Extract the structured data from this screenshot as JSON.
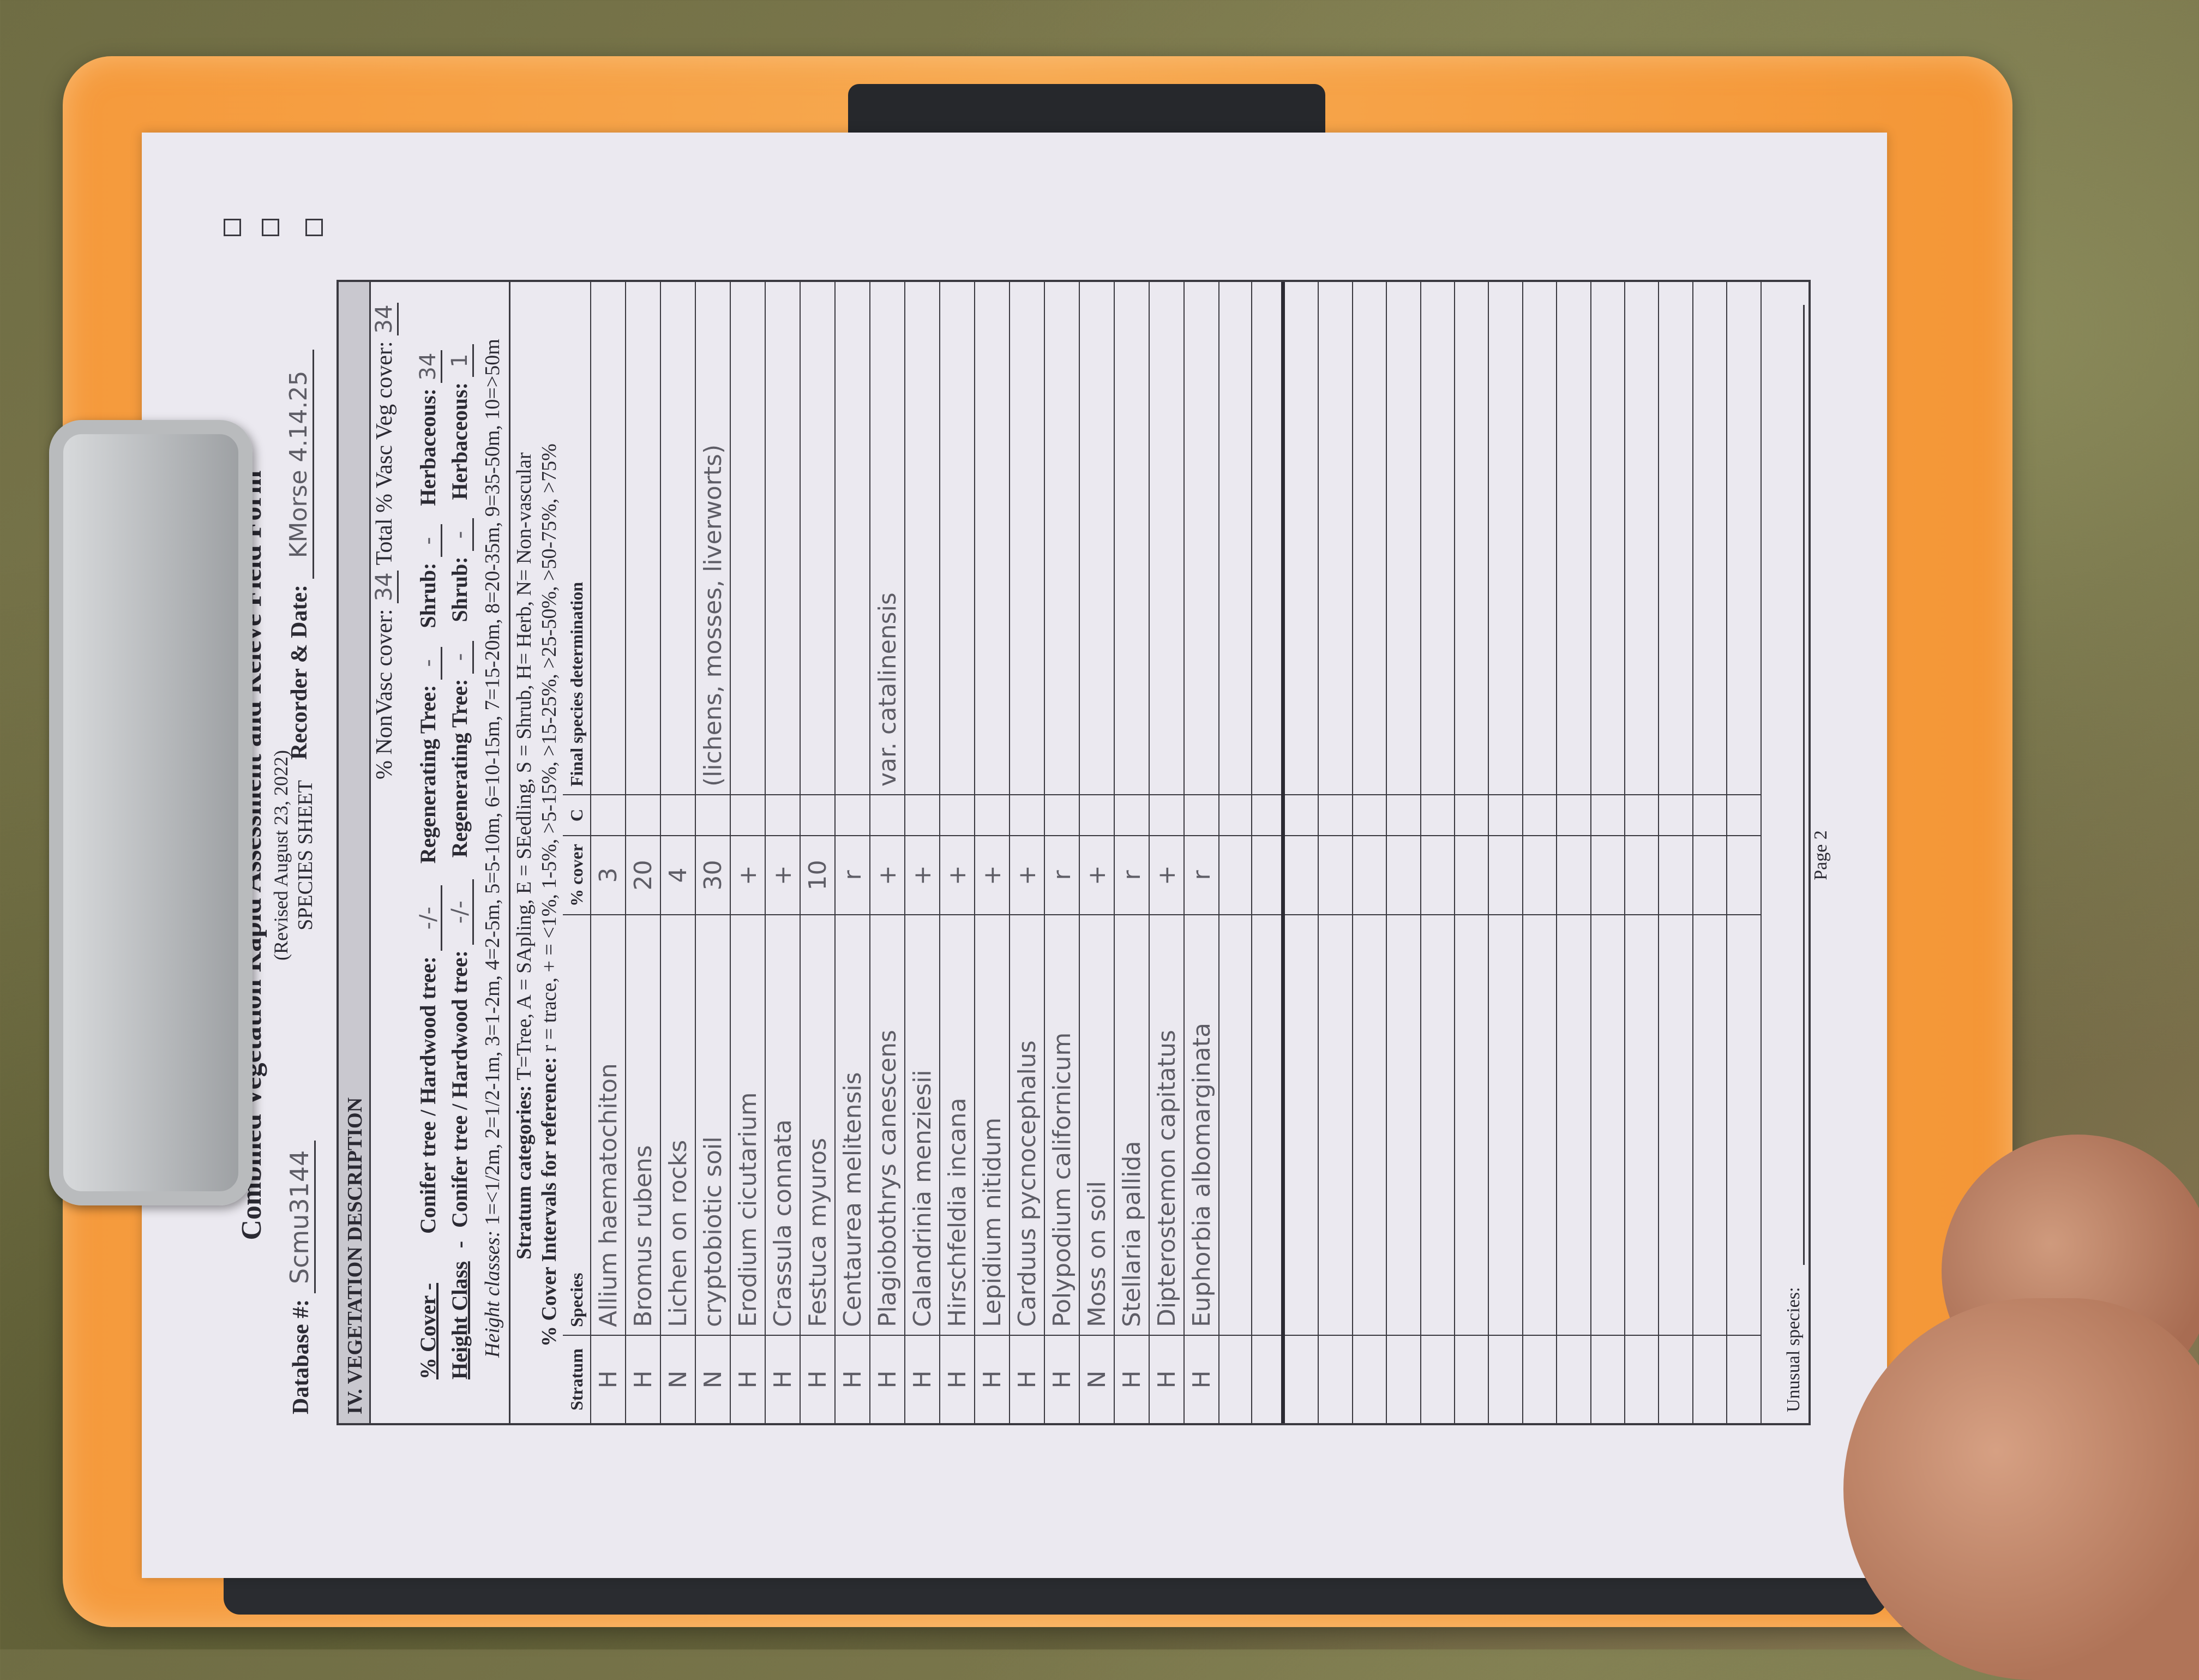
{
  "form": {
    "title": "Combined Vegetation Rapid Assessment and Releve Field Form",
    "revised": "(Revised August 23, 2022)",
    "sheet": "SPECIES SHEET",
    "database_label": "Database #:",
    "database_value": "Scmu3144",
    "recorder_label": "Recorder & Date:",
    "recorder_value": "KMorse 4.14.25",
    "section_title": "IV.  VEGETATION DESCRIPTION",
    "page": "Page 2"
  },
  "cover": {
    "nonvasc_label": "% NonVasc cover:",
    "nonvasc_value": "34",
    "total_vasc_label": "Total % Vasc Veg cover:",
    "total_vasc_value": "34",
    "cover_label": "% Cover -",
    "height_label": "Height Class",
    "conifer_label": "Conifer tree / Hardwood tree:",
    "regen_label": "Regenerating Tree:",
    "shrub_label": "Shrub:",
    "herb_label": "Herbaceous:",
    "cover_row": {
      "conifer": "-/-",
      "regen": "-",
      "shrub": "-",
      "herb": "34"
    },
    "height_row": {
      "conifer": "-/-",
      "regen": "-",
      "shrub": "-",
      "herb": "1"
    },
    "height_classes_label": "Height classes:",
    "height_classes": "1=<1/2m,  2=1/2-1m,  3=1-2m,  4=2-5m,  5=5-10m,  6=10-15m,  7=15-20m,  8=20-35m,  9=35-50m,  10=>50m",
    "stratum_label": "Stratum categories:",
    "stratum_text": "T=Tree, A = SApling, E = SEedling, S = Shrub, H= Herb, N= Non-vascular",
    "intervals_label": "% Cover Intervals for reference:",
    "intervals_text": "r = trace,  + = <1%,  1-5%,  >5-15%,  >15-25%,  >25-50%,  >50-75%,  >75%"
  },
  "table": {
    "headers": [
      "Stratum",
      "Species",
      "% cover",
      "C",
      "Final species determination"
    ],
    "rows": [
      {
        "stratum": "H",
        "species": "Allium haematochiton",
        "cover": "3",
        "c": "",
        "final": ""
      },
      {
        "stratum": "H",
        "species": "Bromus rubens",
        "cover": "20",
        "c": "",
        "final": ""
      },
      {
        "stratum": "N",
        "species": "Lichen on rocks",
        "cover": "4",
        "c": "",
        "final": ""
      },
      {
        "stratum": "N",
        "species": "cryptobiotic soil",
        "cover": "30",
        "c": "",
        "final": "(lichens, mosses, liverworts)"
      },
      {
        "stratum": "H",
        "species": "Erodium cicutarium",
        "cover": "+",
        "c": "",
        "final": ""
      },
      {
        "stratum": "H",
        "species": "Crassula connata",
        "cover": "+",
        "c": "",
        "final": ""
      },
      {
        "stratum": "H",
        "species": "Festuca myuros",
        "cover": "10",
        "c": "",
        "final": ""
      },
      {
        "stratum": "H",
        "species": "Centaurea melitensis",
        "cover": "r",
        "c": "",
        "final": ""
      },
      {
        "stratum": "H",
        "species": "Plagiobothrys canescens",
        "cover": "+",
        "c": "",
        "final": "var. catalinensis"
      },
      {
        "stratum": "H",
        "species": "Calandrinia menziesii",
        "cover": "+",
        "c": "",
        "final": ""
      },
      {
        "stratum": "H",
        "species": "Hirschfeldia incana",
        "cover": "+",
        "c": "",
        "final": ""
      },
      {
        "stratum": "H",
        "species": "Lepidium nitidum",
        "cover": "+",
        "c": "",
        "final": ""
      },
      {
        "stratum": "H",
        "species": "Carduus pycnocephalus",
        "cover": "+",
        "c": "",
        "final": ""
      },
      {
        "stratum": "H",
        "species": "Polypodium californicum",
        "cover": "r",
        "c": "",
        "final": ""
      },
      {
        "stratum": "N",
        "species": "Moss on soil",
        "cover": "+",
        "c": "",
        "final": ""
      },
      {
        "stratum": "H",
        "species": "Stellaria pallida",
        "cover": "r",
        "c": "",
        "final": ""
      },
      {
        "stratum": "H",
        "species": "Dipterostemon capitatus",
        "cover": "+",
        "c": "",
        "final": ""
      },
      {
        "stratum": "H",
        "species": "Euphorbia albomarginata",
        "cover": "r",
        "c": "",
        "final": ""
      }
    ],
    "unusual_label": "Unusual species:"
  },
  "colors": {
    "clipboard": "#f59a3c",
    "paper": "#ebe9f0",
    "ink": "#5e5d66"
  }
}
